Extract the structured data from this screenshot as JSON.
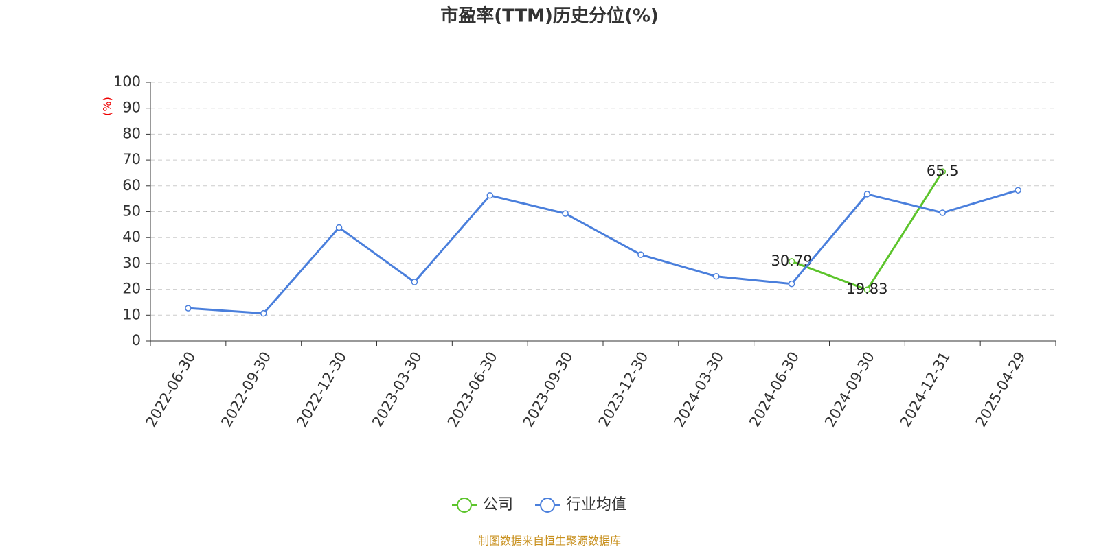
{
  "chart_data": {
    "type": "line",
    "title": "市盈率(TTM)历史分位(%)",
    "y_label": "(%)",
    "source": "制图数据来自恒生聚源数据库",
    "categories": [
      "2022-06-30",
      "2022-09-30",
      "2022-12-30",
      "2023-03-30",
      "2023-06-30",
      "2023-09-30",
      "2023-12-30",
      "2024-03-30",
      "2024-06-30",
      "2024-09-30",
      "2024-12-31",
      "2025-04-29"
    ],
    "series": [
      {
        "name": "公司",
        "color": "#5cc42b",
        "values": [
          null,
          null,
          null,
          null,
          null,
          null,
          null,
          null,
          30.79,
          19.83,
          65.5,
          null
        ],
        "data_labels": true
      },
      {
        "name": "行业均值",
        "color": "#4a7fdc",
        "values": [
          12.7,
          10.7,
          43.9,
          22.8,
          56.3,
          49.3,
          33.4,
          25.0,
          22.1,
          56.8,
          49.6,
          58.3
        ],
        "data_labels": false
      }
    ],
    "ylim": [
      0,
      100
    ],
    "yticks": [
      0,
      10,
      20,
      30,
      40,
      50,
      60,
      70,
      80,
      90,
      100
    ],
    "grid": true
  }
}
